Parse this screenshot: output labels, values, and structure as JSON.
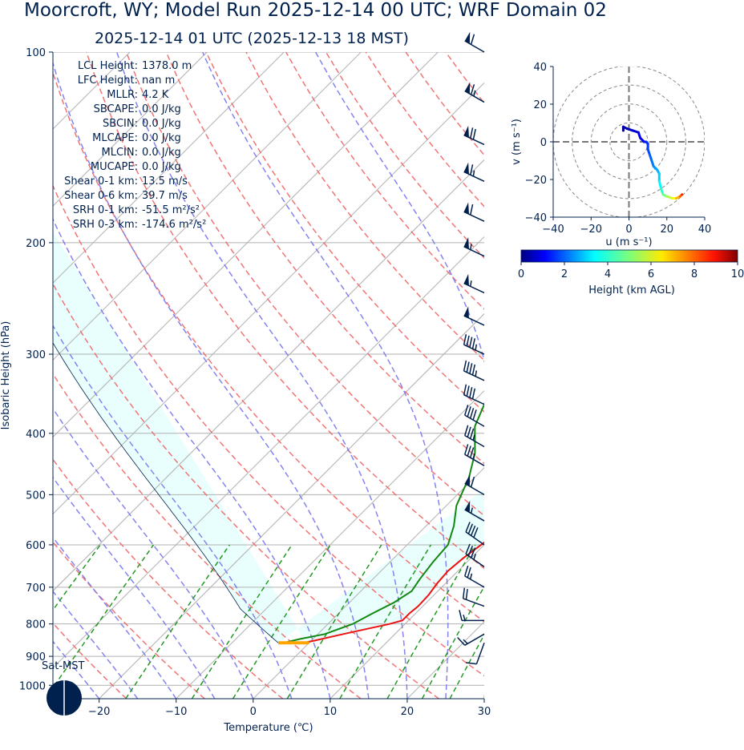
{
  "title": "Moorcroft, WY; Model Run 2025-12-14 00 UTC; WRF Domain 02",
  "subtitle": "2025-12-14 01 UTC  (2025-12-13 18 MST)",
  "colors": {
    "text": "#00204d",
    "temperature": "#ee1111",
    "dewpoint": "#118811",
    "dry_adiabat": "#ee6666",
    "moist_adiabat": "#7777ee",
    "mixing_ratio": "#229922",
    "cape_fill": "#e9fffd",
    "surface_marker": "#ffa500",
    "wind_barb": "#00204d"
  },
  "parameters": [
    {
      "label": "LCL Height:",
      "value": "1378.0 m"
    },
    {
      "label": "LFC Height:",
      "value": "nan m"
    },
    {
      "label": "MLLR:",
      "value": "4.2 K"
    },
    {
      "label": "SBCAPE:",
      "value": "0.0 J/kg"
    },
    {
      "label": "SBCIN:",
      "value": "0.0 J/kg"
    },
    {
      "label": "MLCAPE:",
      "value": "0.0 J/kg"
    },
    {
      "label": "MLCIN:",
      "value": "0.0 J/kg"
    },
    {
      "label": "MUCAPE:",
      "value": "0.0 J/kg"
    },
    {
      "label": "Shear 0-1 km:",
      "value": "13.5 m/s"
    },
    {
      "label": "Shear 0-6 km:",
      "value": "39.7 m/s"
    },
    {
      "label": "SRH 0-1 km:",
      "value": "-51.5 m²/s²"
    },
    {
      "label": "SRH 0-3 km:",
      "value": "-174.6 m²/s²"
    }
  ],
  "sun_label": "Sat-MST",
  "chart_data": [
    {
      "type": "line",
      "name": "skew-t",
      "xlabel": "Temperature (℃)",
      "ylabel": "Isobaric Height (hPa)",
      "x_ticks": [
        -20,
        -10,
        0,
        10,
        20,
        30
      ],
      "y_ticks": [
        100,
        200,
        300,
        400,
        500,
        600,
        700,
        800,
        900,
        1000
      ],
      "xlim": [
        -26,
        30
      ],
      "ylim": [
        1050,
        100
      ],
      "log_y": true,
      "skew": 1.0,
      "grid": true,
      "temperature_profile": {
        "p": [
          857,
          850,
          830,
          800,
          790,
          770,
          750,
          720,
          690,
          660,
          630,
          600,
          560,
          530,
          500,
          450,
          400,
          350,
          300,
          260,
          230,
          210,
          190,
          160,
          130,
          110,
          100
        ],
        "t": [
          -0.8,
          0.4,
          3.3,
          8.0,
          9.2,
          9.2,
          9.4,
          9.3,
          8.9,
          8.7,
          9.0,
          9.6,
          10.4,
          10.3,
          9.6,
          7.7,
          5.4,
          3.0,
          0.3,
          -2.6,
          -4.5,
          -4.9,
          -4.6,
          0.2,
          8.8,
          17.5,
          22.3
        ]
      },
      "dewpoint_profile": {
        "p": [
          857,
          845,
          830,
          800,
          770,
          740,
          710,
          680,
          640,
          600,
          560,
          520,
          470,
          430,
          390,
          340,
          300,
          260,
          215,
          170,
          150,
          130,
          110,
          100
        ],
        "t": [
          -3.3,
          -1.7,
          0.9,
          3.2,
          4.4,
          5.8,
          6.6,
          6.1,
          5.6,
          5.3,
          3.6,
          1.3,
          -0.7,
          -3.1,
          -6.6,
          -9.4,
          -13.4,
          -17.3,
          -19.4,
          -16.2,
          -9.9,
          -7.0,
          -2.4,
          2.0
        ]
      },
      "surface_parcel": {
        "p": 857,
        "t_start": -4,
        "t_end": 0
      }
    },
    {
      "type": "scatter",
      "name": "hodograph",
      "xlabel": "u (m s⁻¹)",
      "ylabel": "v (m s⁻¹)",
      "xlim": [
        -40,
        40
      ],
      "ylim": [
        -40,
        40
      ],
      "x_ticks": [
        -40,
        -20,
        0,
        20,
        40
      ],
      "y_ticks": [
        40,
        20,
        0,
        -20,
        -40
      ],
      "rings": [
        10,
        20,
        30,
        40
      ],
      "u": [
        -3,
        -3,
        -1,
        2,
        5,
        6,
        8,
        9,
        10,
        10,
        11,
        12,
        13,
        14,
        15,
        16,
        16,
        17,
        18,
        20,
        23,
        25,
        27,
        28
      ],
      "v": [
        6,
        8,
        7,
        6,
        5,
        2,
        0,
        0,
        -1,
        -4,
        -7,
        -10,
        -13,
        -14,
        -15,
        -17,
        -21,
        -25,
        -28,
        -29,
        -30,
        -30,
        -29,
        -28
      ],
      "height_km": [
        0.2,
        0.4,
        0.6,
        0.8,
        1.0,
        1.2,
        1.4,
        1.6,
        1.8,
        2.0,
        2.2,
        2.4,
        2.6,
        2.8,
        3.0,
        3.3,
        3.7,
        4.2,
        4.8,
        5.5,
        6.2,
        7.0,
        7.8,
        8.4
      ]
    },
    {
      "type": "heatmap",
      "name": "colorbar",
      "label": "Height (km AGL)",
      "ticks": [
        0,
        2,
        4,
        6,
        8,
        10
      ],
      "range": [
        0,
        10
      ]
    }
  ],
  "wind_barbs": [
    {
      "p": 100,
      "speed": 60,
      "dir": 300
    },
    {
      "p": 120,
      "speed": 65,
      "dir": 300
    },
    {
      "p": 140,
      "speed": 70,
      "dir": 295
    },
    {
      "p": 160,
      "speed": 65,
      "dir": 295
    },
    {
      "p": 185,
      "speed": 60,
      "dir": 295
    },
    {
      "p": 210,
      "speed": 55,
      "dir": 295
    },
    {
      "p": 240,
      "speed": 55,
      "dir": 295
    },
    {
      "p": 270,
      "speed": 50,
      "dir": 295
    },
    {
      "p": 300,
      "speed": 45,
      "dir": 295
    },
    {
      "p": 330,
      "speed": 45,
      "dir": 295
    },
    {
      "p": 360,
      "speed": 40,
      "dir": 295
    },
    {
      "p": 390,
      "speed": 40,
      "dir": 300
    },
    {
      "p": 420,
      "speed": 35,
      "dir": 300
    },
    {
      "p": 450,
      "speed": 35,
      "dir": 300
    },
    {
      "p": 500,
      "speed": 60,
      "dir": 300
    },
    {
      "p": 550,
      "speed": 55,
      "dir": 300
    },
    {
      "p": 600,
      "speed": 40,
      "dir": 305
    },
    {
      "p": 650,
      "speed": 35,
      "dir": 305
    },
    {
      "p": 700,
      "speed": 25,
      "dir": 300
    },
    {
      "p": 750,
      "speed": 20,
      "dir": 290
    },
    {
      "p": 790,
      "speed": 15,
      "dir": 270
    },
    {
      "p": 830,
      "speed": 15,
      "dir": 240
    },
    {
      "p": 857,
      "speed": 10,
      "dir": 200
    }
  ]
}
